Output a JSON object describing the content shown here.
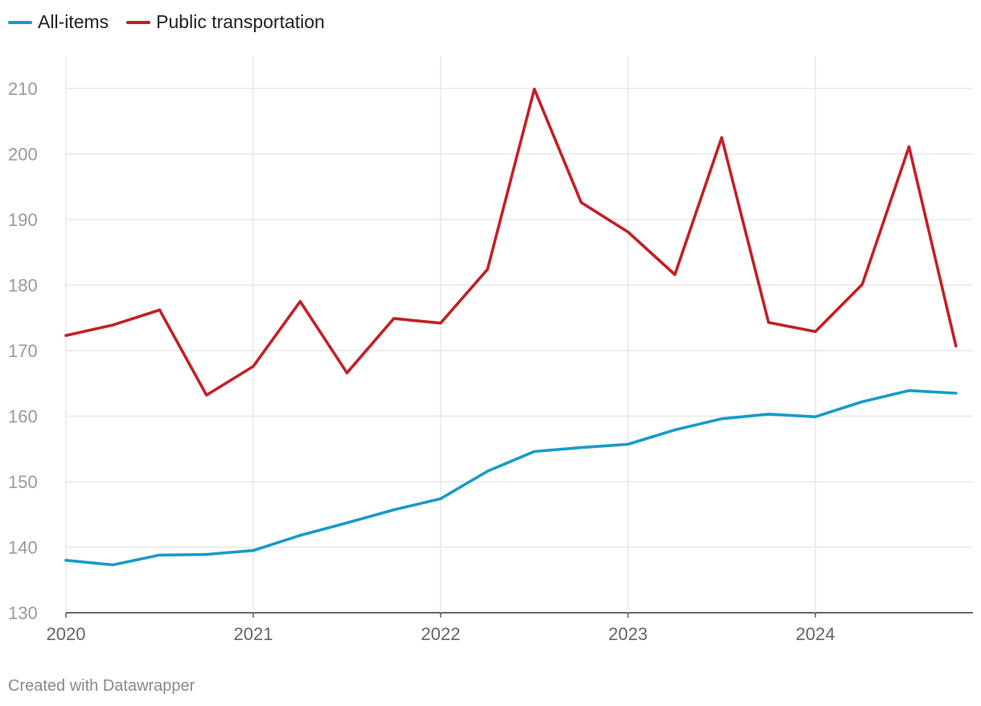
{
  "chart_data": {
    "type": "line",
    "x": [
      2020.0,
      2020.25,
      2020.5,
      2020.75,
      2021.0,
      2021.25,
      2021.5,
      2021.75,
      2022.0,
      2022.25,
      2022.5,
      2022.75,
      2023.0,
      2023.25,
      2023.5,
      2023.75,
      2024.0,
      2024.25,
      2024.5,
      2024.75
    ],
    "series": [
      {
        "name": "All-items",
        "color": "#1a9ac9",
        "values": [
          138.0,
          137.3,
          138.8,
          138.9,
          139.5,
          141.8,
          143.7,
          145.7,
          147.4,
          151.6,
          154.6,
          155.2,
          155.7,
          157.9,
          159.6,
          160.3,
          159.9,
          162.2,
          163.9,
          163.5
        ]
      },
      {
        "name": "Public transportation",
        "color": "#c22026",
        "values": [
          172.3,
          173.9,
          176.2,
          163.2,
          167.6,
          177.5,
          166.6,
          174.9,
          174.2,
          182.4,
          209.9,
          192.6,
          188.1,
          181.6,
          202.5,
          174.3,
          172.9,
          180.1,
          201.1,
          170.7
        ]
      }
    ],
    "xticks": [
      "2020",
      "2021",
      "2022",
      "2023",
      "2024"
    ],
    "yticks": [
      "130",
      "140",
      "150",
      "160",
      "170",
      "180",
      "190",
      "200",
      "210"
    ],
    "xlim": [
      2020,
      2024.85
    ],
    "ylim": [
      130,
      215
    ],
    "grid": true,
    "legend": "top-left"
  },
  "footer": {
    "credit": "Created with Datawrapper"
  }
}
